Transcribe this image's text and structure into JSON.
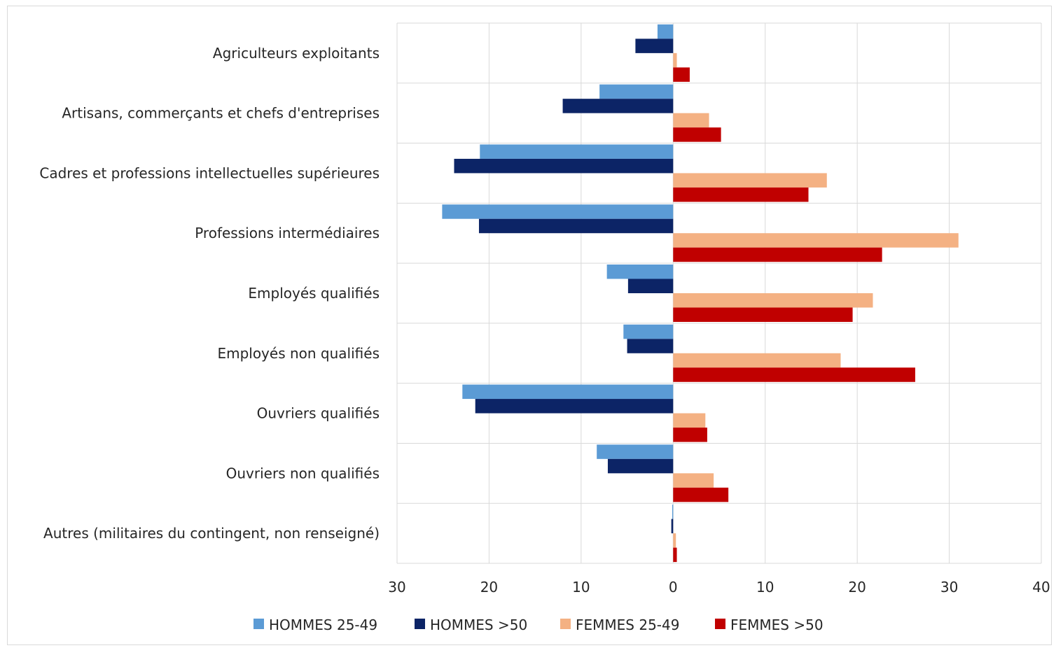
{
  "chart_data": {
    "type": "bar",
    "orientation": "horizontal",
    "categories": [
      "Agriculteurs exploitants",
      "Artisans, commerçants et chefs d'entreprises",
      "Cadres et professions intellectuelles supérieures",
      "Professions intermédiaires",
      "Employés qualifiés",
      "Employés non qualifiés",
      "Ouvriers qualifiés",
      "Ouvriers non qualifiés",
      "Autres (militaires du contingent, non renseigné)"
    ],
    "series": [
      {
        "name": "HOMMES 25-49",
        "color": "#5b9bd5",
        "side": "left",
        "values": [
          1.7,
          8.0,
          21.0,
          25.1,
          7.2,
          5.4,
          22.9,
          8.3,
          0.1
        ]
      },
      {
        "name": "HOMMES >50",
        "color": "#0c2466",
        "side": "left",
        "values": [
          4.1,
          12.0,
          23.8,
          21.1,
          4.9,
          5.0,
          21.5,
          7.1,
          0.2
        ]
      },
      {
        "name": "FEMMES 25-49",
        "color": "#f4b183",
        "side": "right",
        "values": [
          0.4,
          3.9,
          16.7,
          31.0,
          21.7,
          18.2,
          3.5,
          4.4,
          0.3
        ]
      },
      {
        "name": "FEMMES >50",
        "color": "#c00000",
        "side": "right",
        "values": [
          1.8,
          5.2,
          14.7,
          22.7,
          19.5,
          26.3,
          3.7,
          6.0,
          0.4
        ]
      }
    ],
    "xlim": [
      -30,
      40
    ],
    "x_ticks": [
      -30,
      -20,
      -10,
      0,
      10,
      20,
      30,
      40
    ],
    "x_tick_labels": [
      "30",
      "20",
      "10",
      "0",
      "10",
      "20",
      "30",
      "40"
    ],
    "grid": true,
    "legend_position": "bottom",
    "title": "",
    "xlabel": "",
    "ylabel": ""
  }
}
